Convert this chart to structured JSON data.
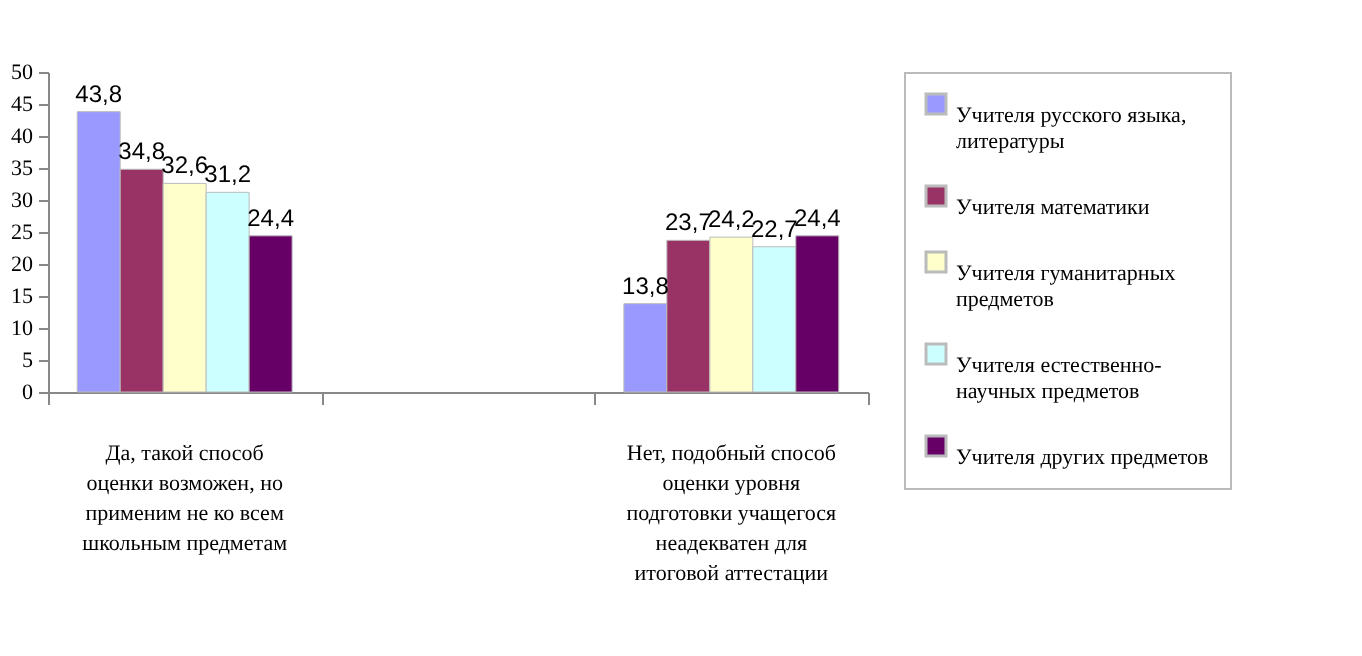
{
  "chart_data": {
    "type": "bar",
    "categories": [
      "Да, такой способ оценки возможен, но применим не ко всем школьным предметам",
      null,
      "Нет, подобный способ оценки уровня подготовки учащегося неадекватен для итоговой аттестации"
    ],
    "series": [
      {
        "name": "Учителя русского языка, литературы",
        "color": "#9999ff",
        "values": [
          43.8,
          null,
          13.8
        ],
        "value_labels": [
          "43,8",
          null,
          "13,8"
        ]
      },
      {
        "name": "Учителя математики",
        "color": "#993366",
        "values": [
          34.8,
          null,
          23.7
        ],
        "value_labels": [
          "34,8",
          null,
          "23,7"
        ]
      },
      {
        "name": "Учителя гуманитарных предметов",
        "color": "#ffffcc",
        "values": [
          32.6,
          null,
          24.2
        ],
        "value_labels": [
          "32,6",
          null,
          "24,2"
        ]
      },
      {
        "name": "Учителя естественно-научных предметов",
        "color": "#ccffff",
        "values": [
          31.2,
          null,
          22.7
        ],
        "value_labels": [
          "31,2",
          null,
          "22,7"
        ]
      },
      {
        "name": "Учителя других предметов",
        "color": "#660066",
        "values": [
          24.4,
          null,
          24.4
        ],
        "value_labels": [
          "24,4",
          null,
          "24,4"
        ]
      }
    ],
    "ylim": [
      0,
      50
    ],
    "yticks": [
      0,
      5,
      10,
      15,
      20,
      25,
      30,
      35,
      40,
      45,
      50
    ],
    "grid": false,
    "legend": "right"
  }
}
